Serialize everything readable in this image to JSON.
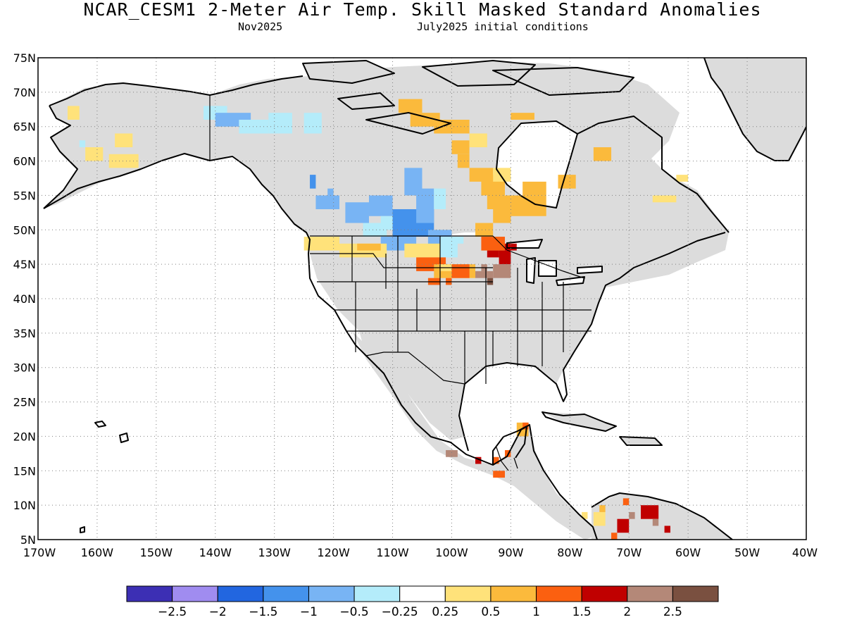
{
  "title": "NCAR_CESM1 2-Meter Air Temp. Skill Masked Standard Anomalies",
  "subtitle_left": "Nov2025",
  "subtitle_right": "July2025 initial conditions",
  "map": {
    "lat_labels": [
      "75N",
      "70N",
      "65N",
      "60N",
      "55N",
      "50N",
      "45N",
      "40N",
      "35N",
      "30N",
      "25N",
      "20N",
      "15N",
      "10N",
      "5N"
    ],
    "lon_labels": [
      "170W",
      "160W",
      "150W",
      "140W",
      "130W",
      "120W",
      "110W",
      "100W",
      "90W",
      "80W",
      "70W",
      "60W",
      "50W",
      "40W"
    ],
    "lat_range": [
      5,
      75
    ],
    "lon_range": [
      -170,
      -40
    ],
    "grid": true,
    "mask_color": "#dcdcdc",
    "coastline_color": "#000000"
  },
  "colorbar": {
    "colors": [
      "#3c2fb4",
      "#a08cf0",
      "#2266e0",
      "#4492ec",
      "#78b4f4",
      "#b4ecfa",
      "#ffffff",
      "#ffe27a",
      "#fbba3c",
      "#fb6010",
      "#c00000",
      "#b48878",
      "#7a5040"
    ],
    "tick_labels": [
      "−2.5",
      "−2",
      "−1.5",
      "−1",
      "−0.5",
      "−0.25",
      "0.25",
      "0.5",
      "1",
      "1.5",
      "2",
      "2.5"
    ]
  }
}
